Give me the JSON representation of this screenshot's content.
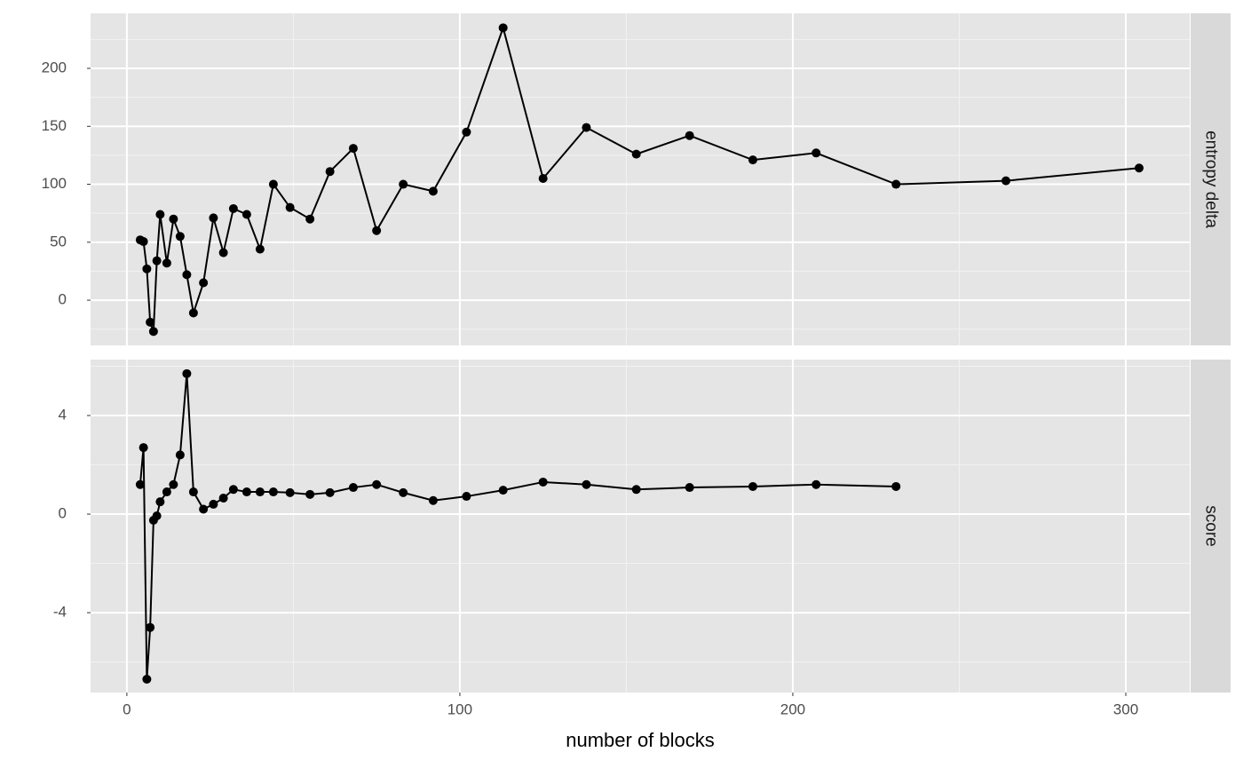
{
  "chart_data": [
    {
      "type": "line",
      "strip": "entropy delta",
      "x": [
        4,
        5,
        6,
        7,
        8,
        9,
        10,
        12,
        14,
        16,
        18,
        20,
        23,
        26,
        29,
        32,
        36,
        40,
        44,
        49,
        55,
        61,
        68,
        75,
        83,
        92,
        102,
        113,
        125,
        138,
        153,
        169,
        188,
        207,
        231,
        264,
        304
      ],
      "values": [
        52,
        50.6,
        27,
        -19,
        -27,
        34,
        74,
        32,
        70,
        55,
        22,
        -11,
        15,
        71,
        41,
        79,
        74,
        44,
        100,
        80,
        70,
        111,
        131,
        60,
        100,
        94,
        145,
        235,
        105,
        149,
        126,
        142,
        121,
        127,
        100,
        103,
        114
      ],
      "color": "#000000",
      "xlim": [
        -10.9,
        319.2
      ],
      "xticks": [
        0,
        100,
        200,
        300
      ],
      "ylim": [
        -39,
        247.5
      ],
      "yticks": [
        0,
        50,
        100,
        150,
        200
      ],
      "grid": true
    },
    {
      "type": "line",
      "strip": "score",
      "x": [
        4,
        5,
        6,
        7,
        8,
        9,
        10,
        12,
        14,
        16,
        18,
        20,
        23,
        26,
        29,
        32,
        36,
        40,
        44,
        49,
        55,
        61,
        68,
        75,
        83,
        92,
        102,
        113,
        125,
        138,
        153,
        169,
        188,
        207,
        231
      ],
      "values": [
        1.2,
        2.7,
        -6.7,
        -4.6,
        -0.25,
        -0.07,
        0.5,
        0.9,
        1.2,
        2.4,
        5.7,
        0.9,
        0.2,
        0.4,
        0.65,
        1.0,
        0.9,
        0.9,
        0.9,
        0.87,
        0.8,
        0.87,
        1.08,
        1.2,
        0.87,
        0.55,
        0.72,
        0.97,
        1.3,
        1.2,
        1.0,
        1.08,
        1.12,
        1.2,
        1.12
      ],
      "color": "#000000",
      "xlim": [
        -10.9,
        319.2
      ],
      "xticks": [
        0,
        100,
        200,
        300
      ],
      "ylim": [
        -7.24,
        6.27
      ],
      "yticks": [
        -4,
        0,
        4
      ],
      "grid": true,
      "x_label": "number of blocks"
    }
  ]
}
